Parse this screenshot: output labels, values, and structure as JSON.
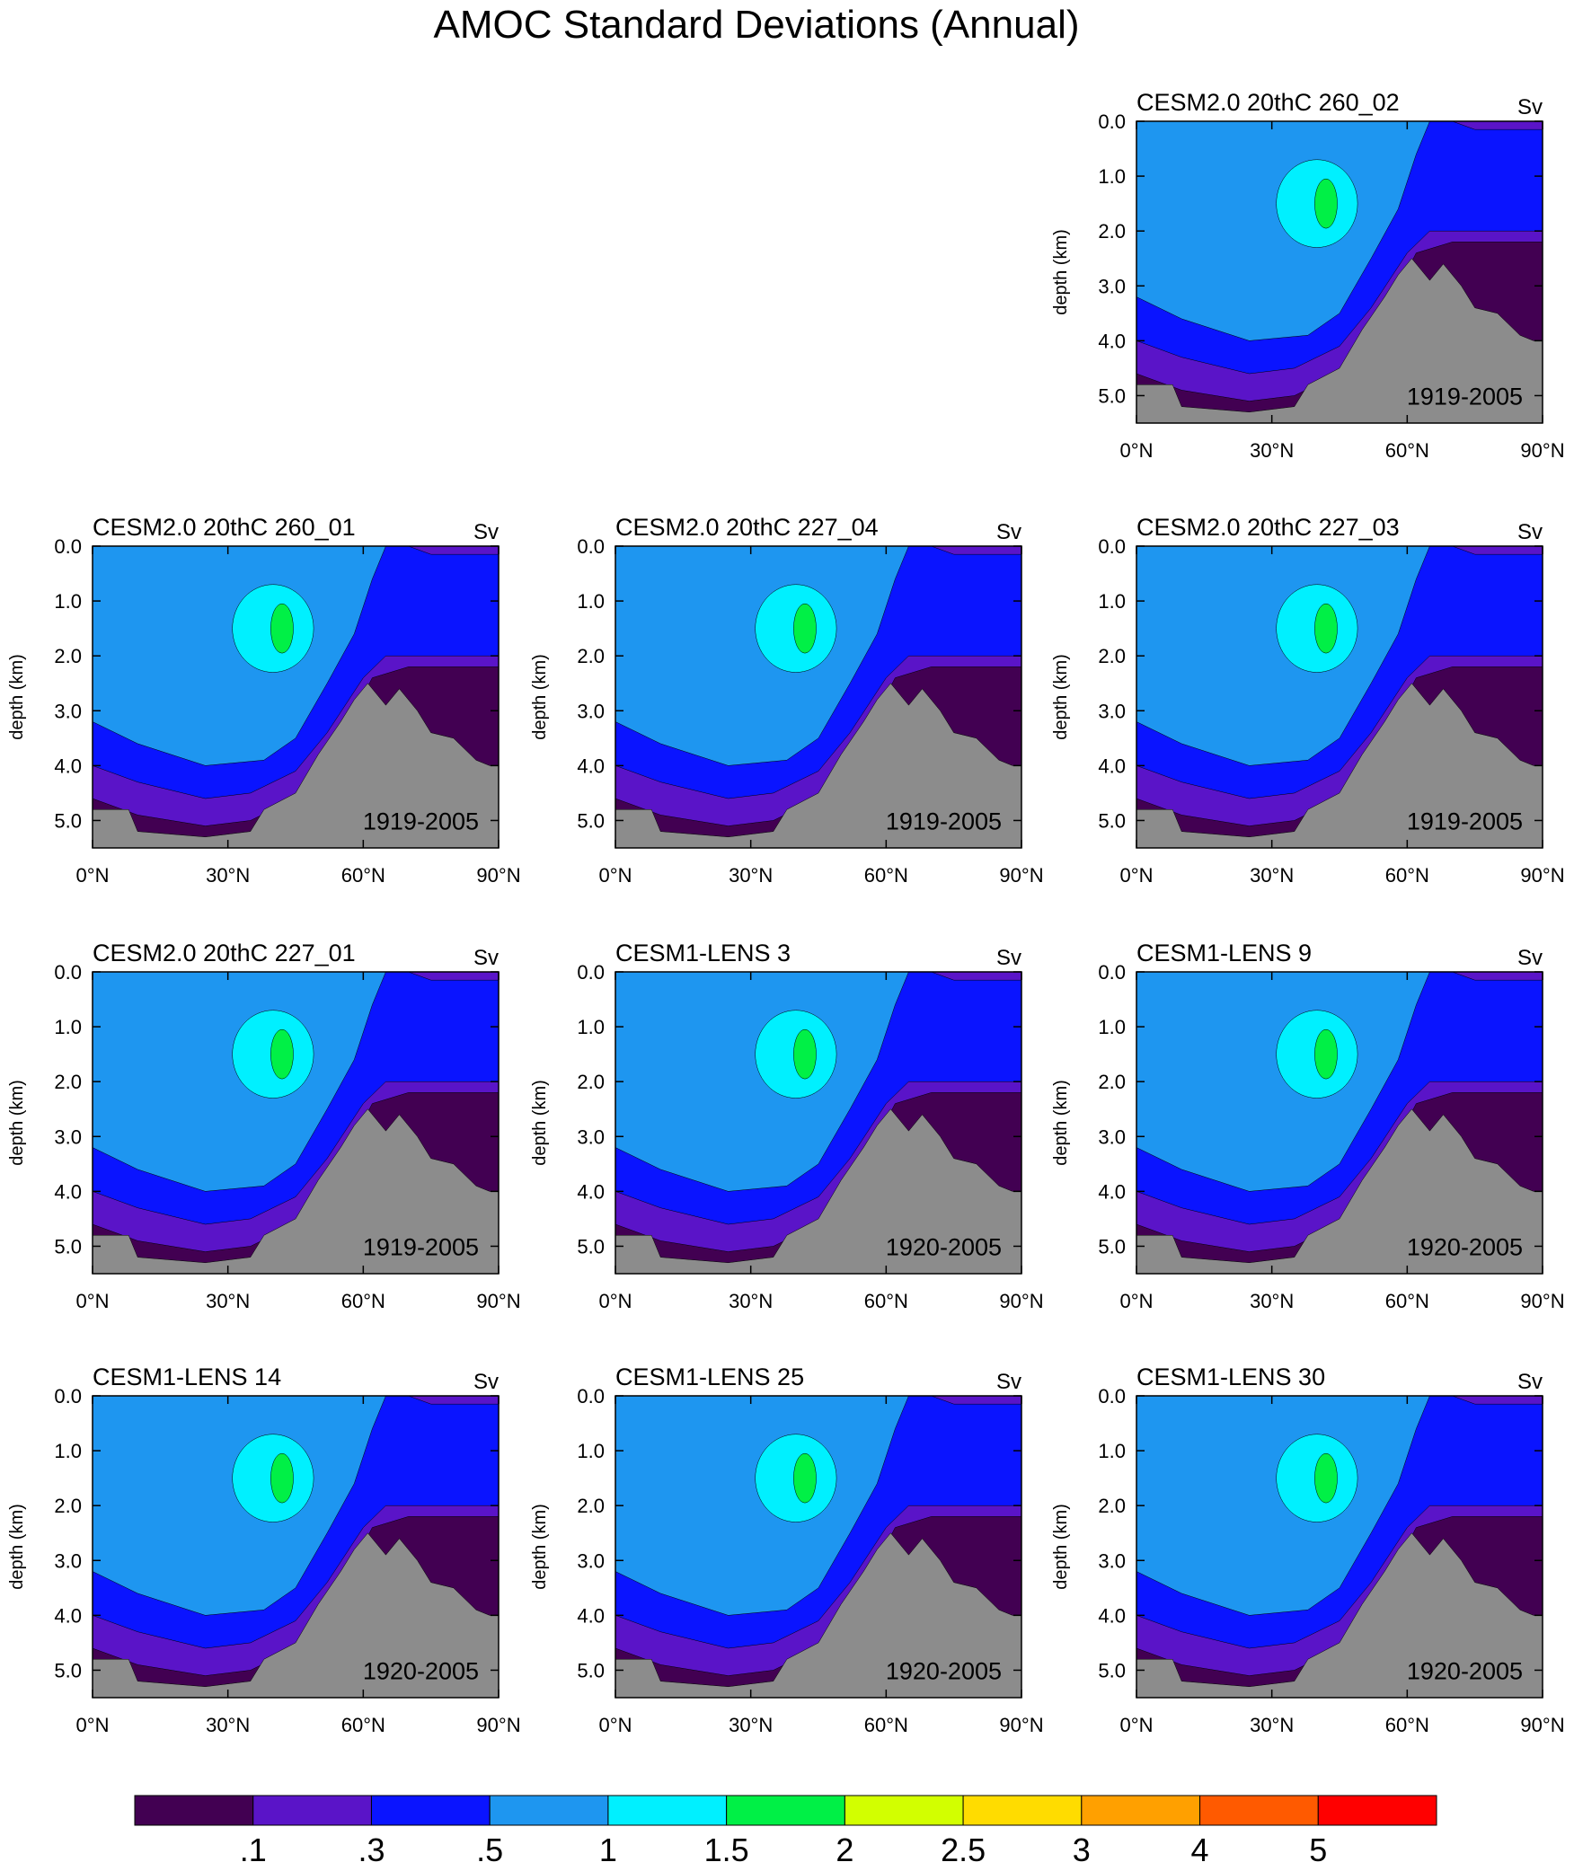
{
  "title": "AMOC Standard Deviations (Annual)",
  "xlim": [
    0,
    90
  ],
  "ylim": [
    0,
    5.5
  ],
  "xticks": [
    {
      "value": 0,
      "label": "0°N"
    },
    {
      "value": 30,
      "label": "30°N"
    },
    {
      "value": 60,
      "label": "60°N"
    },
    {
      "value": 90,
      "label": "90°N"
    }
  ],
  "yticks": [
    {
      "value": 0,
      "label": "0.0"
    },
    {
      "value": 1,
      "label": "1.0"
    },
    {
      "value": 2,
      "label": "2.0"
    },
    {
      "value": 3,
      "label": "3.0"
    },
    {
      "value": 4,
      "label": "4.0"
    },
    {
      "value": 5,
      "label": "5.0"
    }
  ],
  "ylabel": "depth (km)",
  "panels": [
    {
      "title": "CESM2.0 20thC 260_02",
      "units": "Sv",
      "period": "1919-2005"
    },
    {
      "title": "CESM2.0 20thC 260_01",
      "units": "Sv",
      "period": "1919-2005"
    },
    {
      "title": "CESM2.0 20thC 227_04",
      "units": "Sv",
      "period": "1919-2005"
    },
    {
      "title": "CESM2.0 20thC 227_03",
      "units": "Sv",
      "period": "1919-2005"
    },
    {
      "title": "CESM2.0 20thC 227_01",
      "units": "Sv",
      "period": "1919-2005"
    },
    {
      "title": "CESM1-LENS 3",
      "units": "Sv",
      "period": "1920-2005"
    },
    {
      "title": "CESM1-LENS 9",
      "units": "Sv",
      "period": "1920-2005"
    },
    {
      "title": "CESM1-LENS 14",
      "units": "Sv",
      "period": "1920-2005"
    },
    {
      "title": "CESM1-LENS 25",
      "units": "Sv",
      "period": "1920-2005"
    },
    {
      "title": "CESM1-LENS 30",
      "units": "Sv",
      "period": "1920-2005"
    }
  ],
  "colorbar": {
    "colors": [
      "#420052",
      "#5a14c8",
      "#0a14ff",
      "#1e96f0",
      "#00f0ff",
      "#00f046",
      "#d2ff00",
      "#ffdc00",
      "#ffa000",
      "#ff5a00",
      "#ff0000"
    ],
    "levels": [
      {
        "value": 0.1,
        "label": ".1"
      },
      {
        "value": 0.3,
        "label": ".3"
      },
      {
        "value": 0.5,
        "label": ".5"
      },
      1,
      1.5,
      2,
      2.5,
      3,
      4,
      5
    ]
  }
}
